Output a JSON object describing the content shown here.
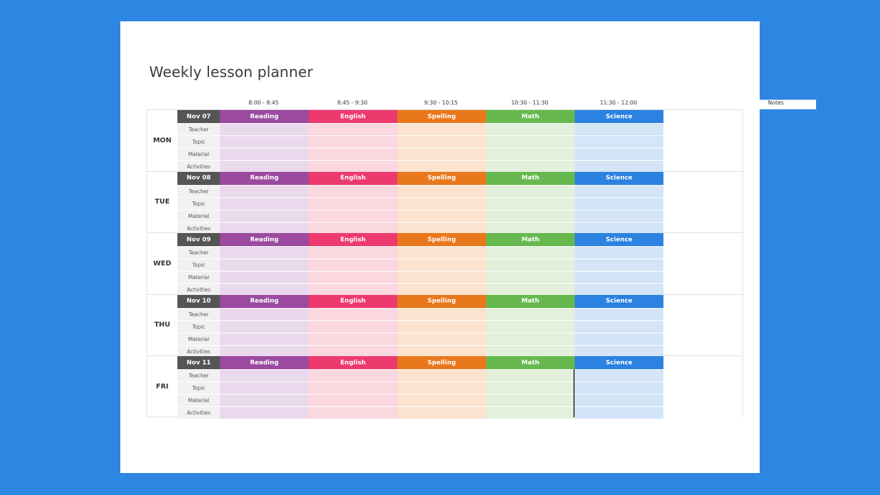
{
  "title": "Weekly lesson planner",
  "time_slots": [
    "8:00 - 8:45",
    "8:45 - 9:30",
    "9:30 - 10:15",
    "10:30 - 11:30",
    "11:30 - 12:00"
  ],
  "notes_label": "Notes",
  "subjects": [
    {
      "name": "Reading",
      "color": "#9b4a9f",
      "light": "#ead9ed"
    },
    {
      "name": "English",
      "color": "#ec3a6f",
      "light": "#fbd7e0"
    },
    {
      "name": "Spelling",
      "color": "#e9781c",
      "light": "#fbe3cf"
    },
    {
      "name": "Math",
      "color": "#67b94f",
      "light": "#e2f0dc"
    },
    {
      "name": "Science",
      "color": "#2b82e0",
      "light": "#d4e5f8"
    }
  ],
  "row_labels": [
    "Teacher",
    "Topic",
    "Material",
    "Activities"
  ],
  "days": [
    {
      "name": "MON",
      "date": "Nov 07"
    },
    {
      "name": "TUE",
      "date": "Nov 08"
    },
    {
      "name": "WED",
      "date": "Nov 09"
    },
    {
      "name": "THU",
      "date": "Nov 10"
    },
    {
      "name": "FRI",
      "date": "Nov 11"
    }
  ]
}
